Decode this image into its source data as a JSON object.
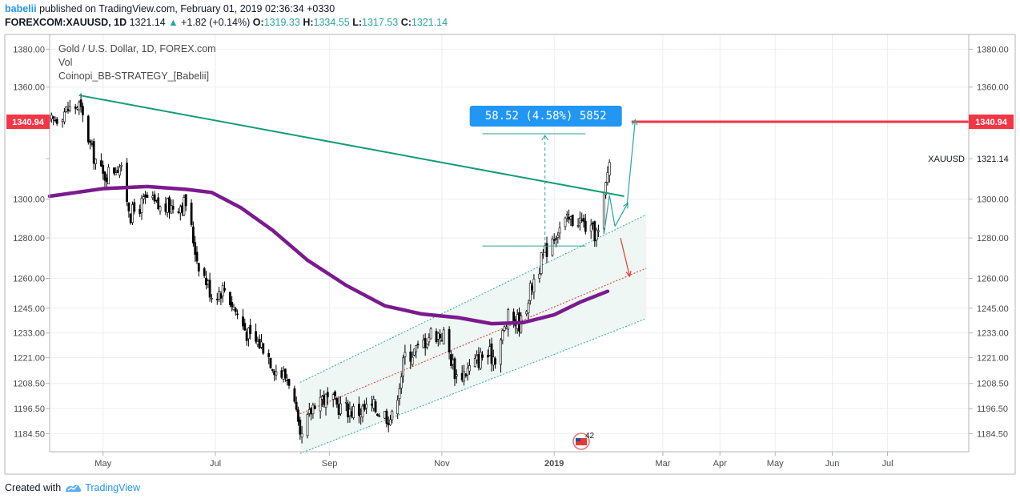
{
  "header": {
    "user": "babelii",
    "published_text": "published on TradingView.com, February 01, 2019 02:36:34 +0330",
    "symbol": "FOREXCOM:XAUUSD, 1D",
    "last": "1321.14",
    "change_arrow": "▲",
    "change": "+1.82 (+0.14%)",
    "o_label": "O:",
    "o": "1319.33",
    "h_label": "H:",
    "h": "1334.55",
    "l_label": "L:",
    "l": "1317.53",
    "c_label": "C:",
    "c": "1321.14"
  },
  "footer": {
    "created_with": "Created with",
    "brand": "TradingView"
  },
  "colors": {
    "up": "#26a69a",
    "trendline": "#149c74",
    "ma": "#7b1a8f",
    "resistance": "#f23645",
    "channel_fill": "#eef7f3",
    "label_bg": "#2196f3"
  },
  "chart_data": {
    "type": "candlestick",
    "overlay_lines": [
      "Gold / U.S. Dollar, 1D, FOREX.com",
      "Vol",
      "Coinopi_BB-STRATEGY_[Babelii]"
    ],
    "y_ticks": [
      "1380.00",
      "1360.00",
      "1340.94",
      "1321.14",
      "1300.00",
      "1280.00",
      "1260.00",
      "1245.00",
      "1233.00",
      "1221.00",
      "1208.50",
      "1196.50",
      "1184.50"
    ],
    "y_tick_values": [
      1380.0,
      1360.0,
      1340.94,
      1321.14,
      1300.0,
      1280.0,
      1260.0,
      1245.0,
      1233.0,
      1221.0,
      1208.5,
      1196.5,
      1184.5
    ],
    "highlight_left": "1340.94",
    "highlight_right": "1340.94",
    "price_tag": "XAUUSD",
    "last_price": "1321.14",
    "x_labels": [
      "May",
      "Jul",
      "Sep",
      "Nov",
      "2019",
      "Mar",
      "Apr",
      "May",
      "Jun",
      "Jul"
    ],
    "x_label_dates": [
      "2018-05-01",
      "2018-07-01",
      "2018-09-01",
      "2018-11-01",
      "2019-01-01",
      "2019-03-01",
      "2019-04-01",
      "2019-05-01",
      "2019-06-01",
      "2019-07-01"
    ],
    "measure_label": "58.52 (4.58%) 5852",
    "resistance_level": 1340.94,
    "trendline": {
      "from": [
        "2018-04-18",
        1355.5
      ],
      "to": [
        "2019-02-08",
        1301.5
      ]
    },
    "channel_upper": {
      "from": [
        "2018-08-16",
        1209
      ],
      "to": [
        "2019-02-20",
        1292
      ]
    },
    "channel_mid": {
      "from": [
        "2018-08-16",
        1194
      ],
      "to": [
        "2019-02-20",
        1265
      ]
    },
    "channel_lower": {
      "from": [
        "2018-08-16",
        1175
      ],
      "to": [
        "2019-02-20",
        1240
      ]
    },
    "measure_low": 1276.0,
    "measure_high": 1334.5,
    "arrows": [
      {
        "from": [
          "2019-01-31",
          1302
        ],
        "to": [
          "2019-02-10",
          1298
        ]
      },
      {
        "from": [
          "2019-02-03",
          1286
        ],
        "to": [
          "2019-02-14",
          1342
        ]
      },
      {
        "from": [
          "2019-02-06",
          1280
        ],
        "to": [
          "2019-02-11",
          1261
        ]
      }
    ],
    "ma_series": [
      [
        "2018-04-02",
        1301.5
      ],
      [
        "2018-05-01",
        1305.5
      ],
      [
        "2018-05-25",
        1306.6
      ],
      [
        "2018-06-15",
        1305.1
      ],
      [
        "2018-06-29",
        1303.5
      ],
      [
        "2018-07-15",
        1295.5
      ],
      [
        "2018-08-01",
        1284.0
      ],
      [
        "2018-08-20",
        1269.0
      ],
      [
        "2018-09-10",
        1256.5
      ],
      [
        "2018-10-01",
        1246.2
      ],
      [
        "2018-10-21",
        1242.2
      ],
      [
        "2018-11-10",
        1240.4
      ],
      [
        "2018-11-28",
        1237.5
      ],
      [
        "2018-12-15",
        1238.0
      ],
      [
        "2019-01-01",
        1241.8
      ],
      [
        "2019-01-15",
        1248.0
      ],
      [
        "2019-01-30",
        1253.5
      ]
    ],
    "price_anchors": [
      [
        "2018-04-02",
        1340
      ],
      [
        "2018-04-10",
        1347
      ],
      [
        "2018-04-18",
        1350
      ],
      [
        "2018-04-25",
        1325
      ],
      [
        "2018-05-01",
        1312
      ],
      [
        "2018-05-10",
        1318
      ],
      [
        "2018-05-16",
        1292
      ],
      [
        "2018-05-25",
        1300
      ],
      [
        "2018-06-01",
        1295
      ],
      [
        "2018-06-10",
        1297
      ],
      [
        "2018-06-15",
        1298
      ],
      [
        "2018-06-21",
        1270
      ],
      [
        "2018-06-29",
        1252
      ],
      [
        "2018-07-06",
        1255
      ],
      [
        "2018-07-13",
        1242
      ],
      [
        "2018-07-20",
        1230
      ],
      [
        "2018-07-27",
        1227
      ],
      [
        "2018-08-03",
        1215
      ],
      [
        "2018-08-11",
        1210
      ],
      [
        "2018-08-16",
        1180
      ],
      [
        "2018-08-25",
        1203
      ],
      [
        "2018-09-05",
        1198
      ],
      [
        "2018-09-15",
        1195
      ],
      [
        "2018-09-25",
        1197
      ],
      [
        "2018-10-05",
        1192
      ],
      [
        "2018-10-12",
        1222
      ],
      [
        "2018-10-19",
        1225
      ],
      [
        "2018-10-26",
        1233
      ],
      [
        "2018-11-02",
        1232
      ],
      [
        "2018-11-09",
        1212
      ],
      [
        "2018-11-15",
        1215
      ],
      [
        "2018-11-23",
        1222
      ],
      [
        "2018-11-30",
        1222
      ],
      [
        "2018-12-07",
        1240
      ],
      [
        "2018-12-14",
        1238
      ],
      [
        "2018-12-21",
        1260
      ],
      [
        "2018-12-31",
        1281
      ],
      [
        "2019-01-07",
        1288
      ],
      [
        "2019-01-14",
        1290
      ],
      [
        "2019-01-21",
        1283
      ],
      [
        "2019-01-25",
        1282
      ],
      [
        "2019-01-28",
        1300
      ],
      [
        "2019-01-31",
        1321
      ]
    ],
    "event_badge": "42"
  }
}
